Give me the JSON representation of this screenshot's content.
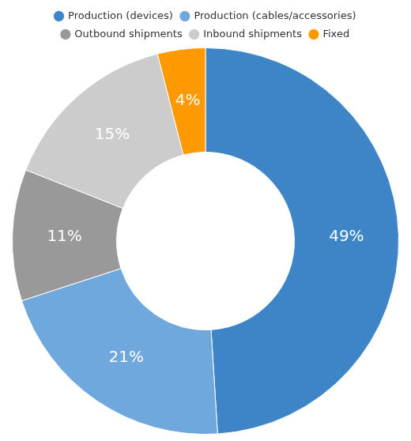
{
  "chart_data": {
    "type": "doughnut",
    "categories": [
      "Production (devices)",
      "Production (cables/accessories)",
      "Outbound shipments",
      "Inbound shipments",
      "Fixed"
    ],
    "values": [
      49,
      21,
      11,
      15,
      4
    ],
    "value_labels": [
      "49%",
      "21%",
      "11%",
      "15%",
      "4%"
    ],
    "colors": [
      "#3d85c6",
      "#6fa8dc",
      "#999999",
      "#cccccc",
      "#ff9900"
    ],
    "data_labels": true,
    "legend": "top"
  }
}
